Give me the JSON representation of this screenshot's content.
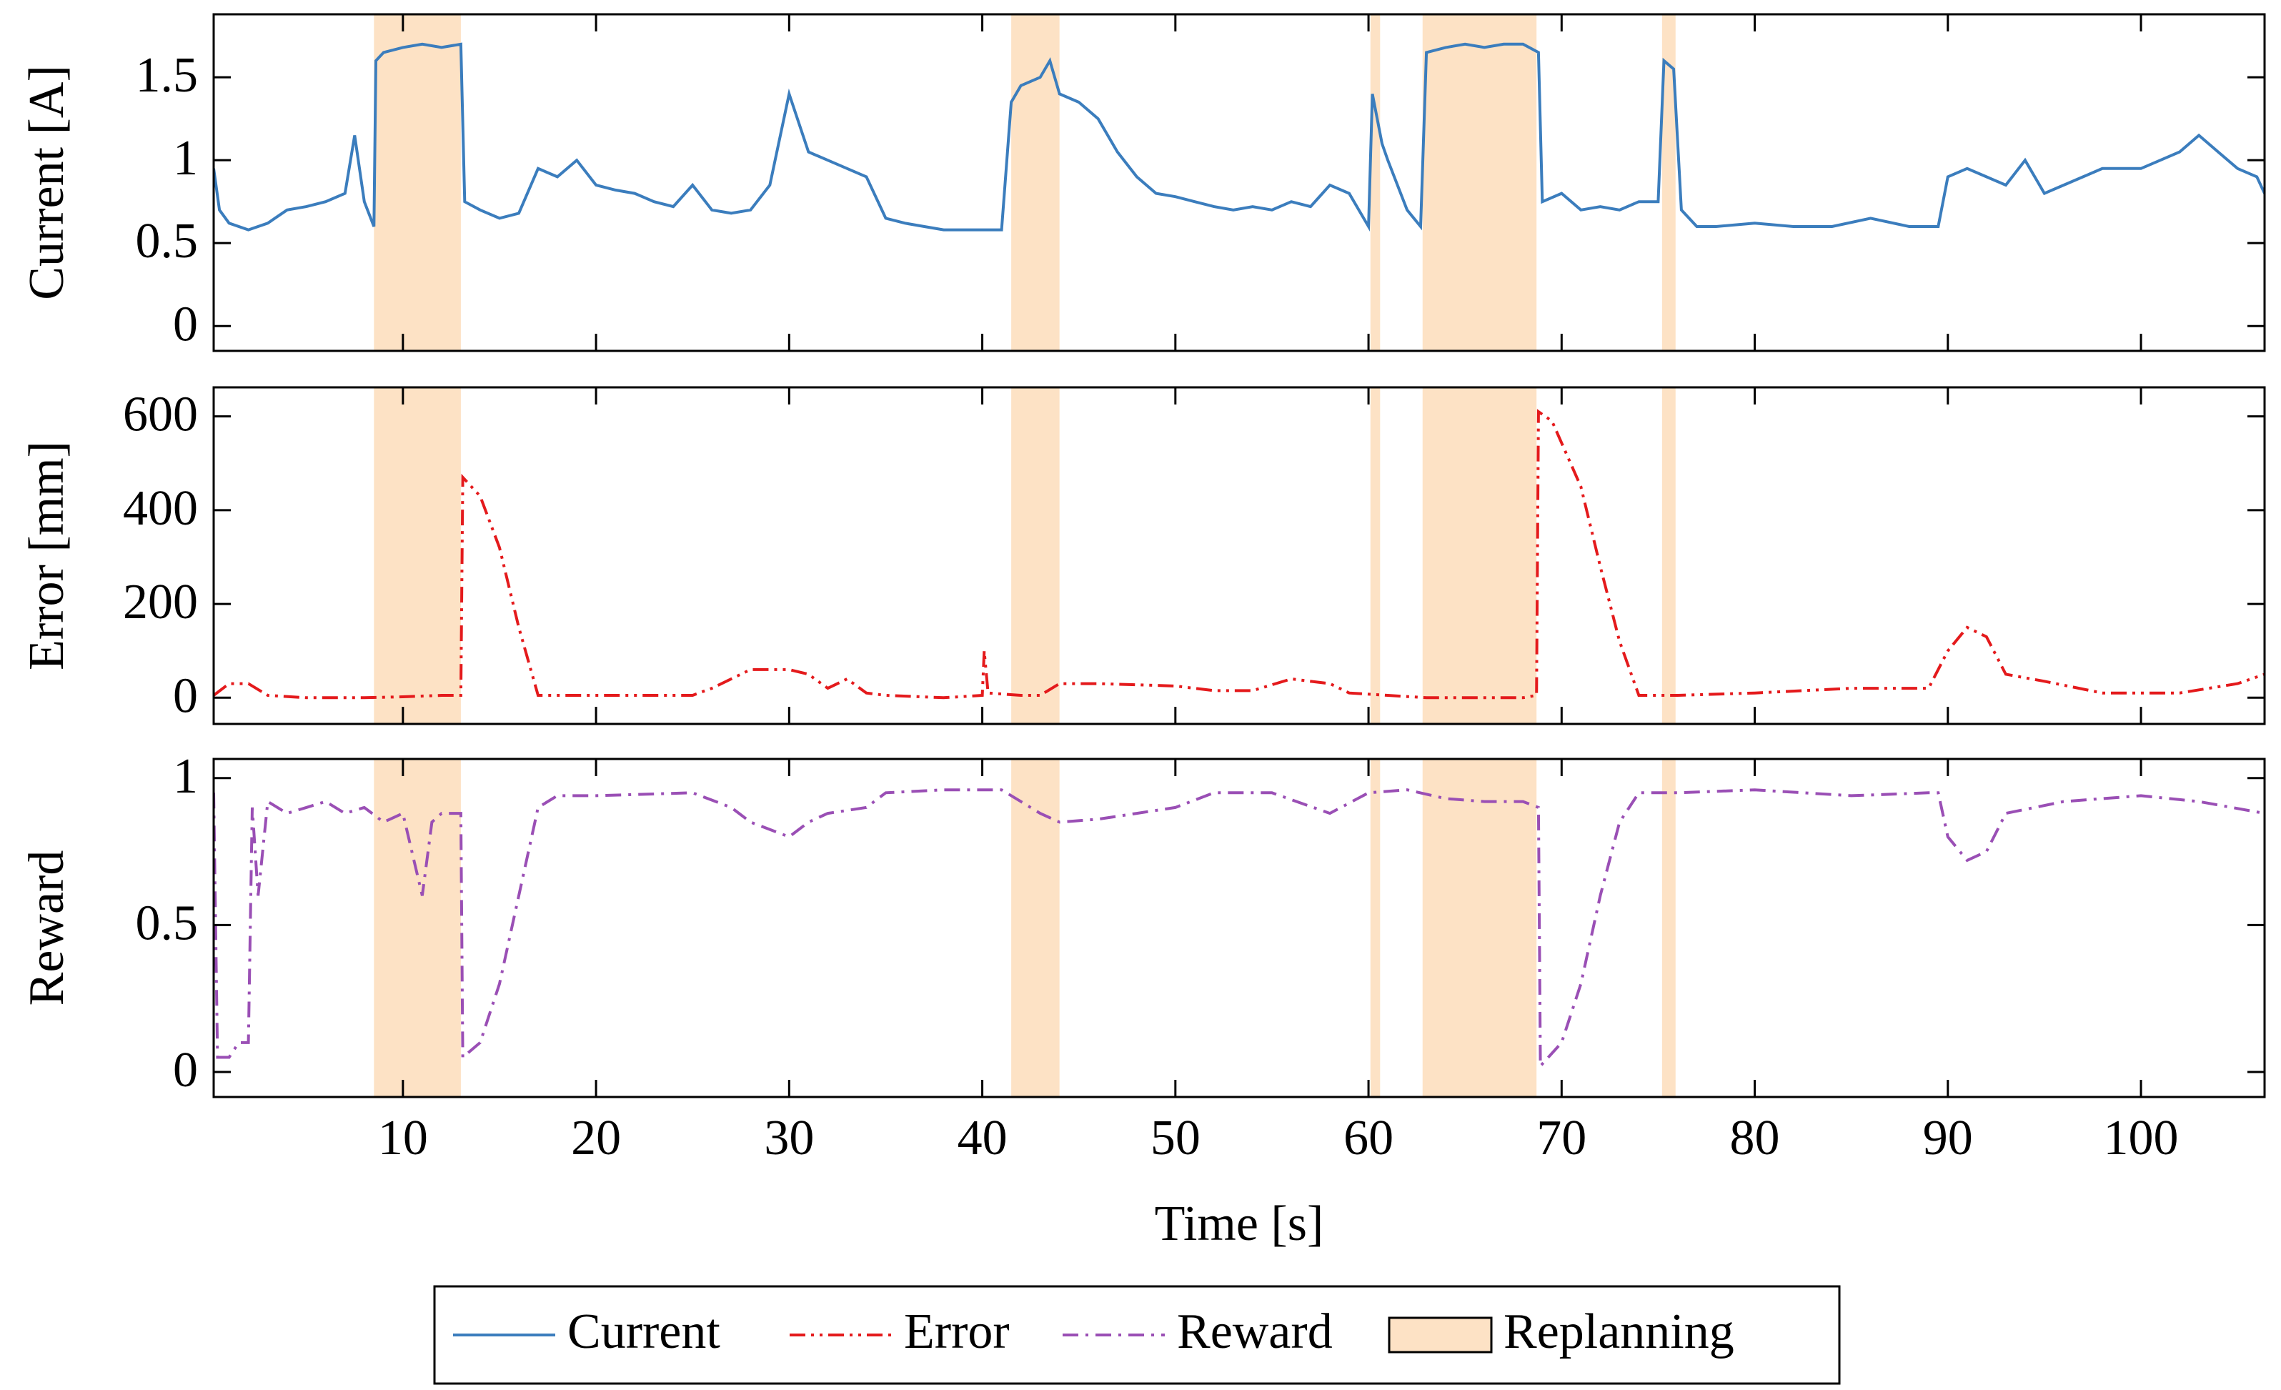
{
  "chart_data": [
    {
      "type": "line",
      "ylabel": "Current [A]",
      "xlim": [
        0.2,
        106.4
      ],
      "ylim": [
        -0.15,
        1.88
      ],
      "yticks": [
        0,
        0.5,
        1,
        1.5
      ],
      "x": [
        0.2,
        0.5,
        1,
        2,
        3,
        4,
        5,
        6,
        7,
        7.5,
        8,
        8.5,
        8.6,
        9,
        10,
        11,
        12,
        13,
        13.2,
        14,
        15,
        16,
        17,
        18,
        19,
        20,
        21,
        22,
        23,
        24,
        25,
        26,
        27,
        28,
        29,
        30,
        31,
        32,
        33,
        34,
        35,
        36,
        37,
        38,
        39,
        40,
        41,
        41.5,
        42,
        43,
        43.5,
        44,
        45,
        46,
        47,
        48,
        49,
        50,
        51,
        52,
        53,
        54,
        55,
        56,
        57,
        58,
        59,
        60,
        60.2,
        60.7,
        61,
        62,
        62.7,
        63,
        64,
        65,
        66,
        67,
        68,
        68.8,
        69,
        70,
        71,
        72,
        73,
        74,
        75,
        75.3,
        75.8,
        76.2,
        77,
        78,
        80,
        82,
        84,
        86,
        88,
        89.5,
        90,
        91,
        92,
        93,
        94,
        95,
        96,
        97,
        98,
        99,
        100,
        101,
        102,
        103,
        104,
        105,
        106,
        106.4
      ],
      "series": [
        {
          "name": "Current",
          "color": "#3b7dbd",
          "style": "solid",
          "values": [
            0.95,
            0.7,
            0.62,
            0.58,
            0.62,
            0.7,
            0.72,
            0.75,
            0.8,
            1.15,
            0.75,
            0.6,
            1.6,
            1.65,
            1.68,
            1.7,
            1.68,
            1.7,
            0.75,
            0.7,
            0.65,
            0.68,
            0.95,
            0.9,
            1.0,
            0.85,
            0.82,
            0.8,
            0.75,
            0.72,
            0.85,
            0.7,
            0.68,
            0.7,
            0.85,
            1.4,
            1.05,
            1.0,
            0.95,
            0.9,
            0.65,
            0.62,
            0.6,
            0.58,
            0.58,
            0.58,
            0.58,
            1.35,
            1.45,
            1.5,
            1.6,
            1.4,
            1.35,
            1.25,
            1.05,
            0.9,
            0.8,
            0.78,
            0.75,
            0.72,
            0.7,
            0.72,
            0.7,
            0.75,
            0.72,
            0.85,
            0.8,
            0.6,
            1.4,
            1.1,
            1.0,
            0.7,
            0.6,
            1.65,
            1.68,
            1.7,
            1.68,
            1.7,
            1.7,
            1.65,
            0.75,
            0.8,
            0.7,
            0.72,
            0.7,
            0.75,
            0.75,
            1.6,
            1.55,
            0.7,
            0.6,
            0.6,
            0.62,
            0.6,
            0.6,
            0.65,
            0.6,
            0.6,
            0.9,
            0.95,
            0.9,
            0.85,
            1.0,
            0.8,
            0.85,
            0.9,
            0.95,
            0.95,
            0.95,
            1.0,
            1.05,
            1.15,
            1.05,
            0.95,
            0.9,
            0.8
          ]
        }
      ]
    },
    {
      "type": "line",
      "ylabel": "Error [mm]",
      "xlim": [
        0.2,
        106.4
      ],
      "ylim": [
        -56,
        662
      ],
      "yticks": [
        0,
        200,
        400,
        600
      ],
      "x": [
        0.2,
        1,
        2,
        3,
        5,
        8,
        10,
        12,
        13,
        13.1,
        14,
        15,
        16,
        17,
        20,
        25,
        26,
        27,
        28,
        30,
        31,
        32,
        33,
        34,
        35,
        38,
        40,
        40.1,
        40.3,
        42,
        43,
        44,
        46,
        50,
        52,
        54,
        56,
        58,
        59,
        61,
        63,
        65,
        68,
        68.7,
        68.8,
        69.5,
        71,
        72,
        73,
        74,
        76,
        80,
        85,
        89,
        90,
        91,
        92,
        93,
        95,
        98,
        102,
        105,
        106.4
      ],
      "series": [
        {
          "name": "Error",
          "color": "#e41a1c",
          "style": "dashdotdot",
          "values": [
            5,
            30,
            30,
            5,
            0,
            0,
            2,
            5,
            5,
            470,
            430,
            320,
            150,
            5,
            5,
            5,
            20,
            40,
            60,
            60,
            50,
            20,
            40,
            10,
            5,
            0,
            5,
            100,
            10,
            5,
            5,
            30,
            30,
            25,
            15,
            15,
            40,
            30,
            10,
            5,
            0,
            0,
            0,
            5,
            610,
            590,
            450,
            280,
            120,
            5,
            5,
            10,
            20,
            20,
            100,
            150,
            130,
            50,
            35,
            10,
            10,
            30,
            50
          ]
        }
      ]
    },
    {
      "type": "line",
      "ylabel": "Reward",
      "xlabel": "Time [s]",
      "xlim": [
        0.2,
        106.4
      ],
      "ylim": [
        -0.085,
        1.065
      ],
      "yticks": [
        0,
        0.5,
        1
      ],
      "xticks": [
        10,
        20,
        30,
        40,
        50,
        60,
        70,
        80,
        90,
        100
      ],
      "x": [
        0.2,
        0.4,
        1,
        1.5,
        2,
        2.2,
        2.5,
        3,
        4,
        5,
        6,
        7,
        8,
        9,
        10,
        11,
        11.5,
        12,
        13,
        13.1,
        14,
        15,
        16,
        17,
        18,
        20,
        25,
        27,
        28,
        30,
        31,
        32,
        34,
        35,
        38,
        41,
        42,
        43,
        44,
        46,
        48,
        50,
        52,
        55,
        58,
        60,
        62,
        64,
        66,
        68,
        68.8,
        68.9,
        70,
        71,
        72,
        73,
        74,
        76,
        80,
        85,
        89,
        89.5,
        90,
        91,
        92,
        93,
        96,
        100,
        103,
        106.4
      ],
      "series": [
        {
          "name": "Reward",
          "color": "#9a4fb5",
          "style": "dashdot",
          "values": [
            0.95,
            0.05,
            0.05,
            0.1,
            0.1,
            0.9,
            0.6,
            0.92,
            0.88,
            0.9,
            0.92,
            0.88,
            0.9,
            0.85,
            0.88,
            0.6,
            0.85,
            0.88,
            0.88,
            0.05,
            0.1,
            0.3,
            0.6,
            0.9,
            0.94,
            0.94,
            0.95,
            0.9,
            0.85,
            0.8,
            0.85,
            0.88,
            0.9,
            0.95,
            0.96,
            0.96,
            0.92,
            0.88,
            0.85,
            0.86,
            0.88,
            0.9,
            0.95,
            0.95,
            0.88,
            0.95,
            0.96,
            0.93,
            0.92,
            0.92,
            0.9,
            0.02,
            0.1,
            0.3,
            0.6,
            0.85,
            0.95,
            0.95,
            0.96,
            0.94,
            0.95,
            0.95,
            0.8,
            0.72,
            0.75,
            0.88,
            0.92,
            0.94,
            0.92,
            0.88
          ]
        }
      ]
    }
  ],
  "replanning": {
    "name": "Replanning",
    "color": "#fde2c5",
    "spans": [
      [
        8.5,
        13.0
      ],
      [
        41.5,
        44.0
      ],
      [
        60.1,
        60.6
      ],
      [
        62.8,
        68.7
      ],
      [
        75.2,
        75.9
      ]
    ]
  }
}
